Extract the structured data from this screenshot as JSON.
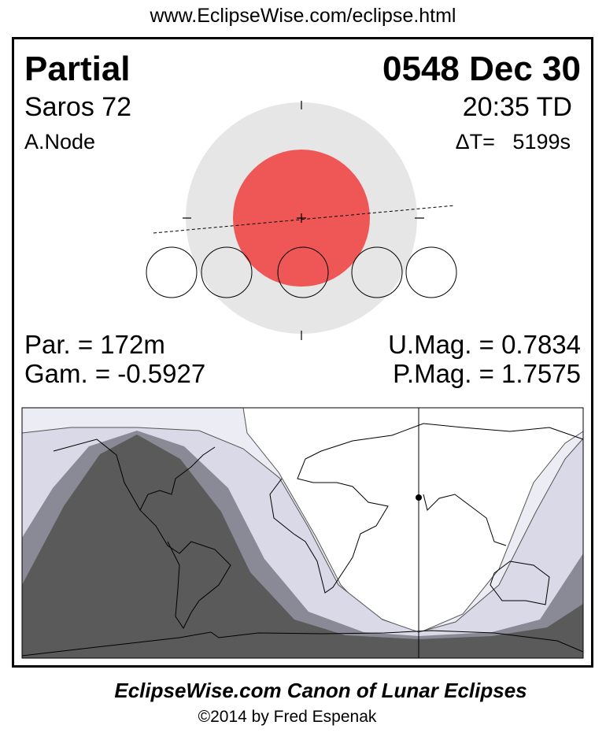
{
  "url": "www.EclipseWise.com/eclipse.html",
  "header": {
    "eclipse_type": "Partial",
    "date": "0548 Dec 30",
    "saros": "Saros  72",
    "time": "20:35 TD",
    "node": "A.Node",
    "delta_t": "ΔT=   5199s"
  },
  "stats": {
    "partial_duration": "Par. = 172m",
    "gamma": "Gam. = -0.5927",
    "umbral_magnitude": "U.Mag. = 0.7834",
    "penumbral_magnitude": "P.Mag. = 1.7575"
  },
  "colors": {
    "penumbra": "#e6e6e6",
    "umbra": "#ef5656",
    "map_night": "#5a5a5a",
    "map_umbral_zone": "#8a8a96",
    "map_penumbral_zone": "#d9d9e7",
    "map_penumbral_outer": "#ececf4"
  },
  "footer": {
    "title": "EclipseWise.com Canon of Lunar Eclipses",
    "copyright": "©2014 by Fred Espenak"
  }
}
